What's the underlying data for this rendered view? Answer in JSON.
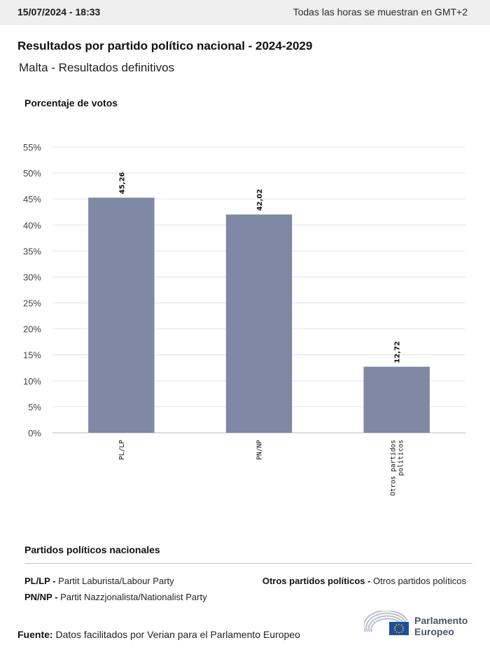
{
  "header": {
    "datetime": "15/07/2024 - 18:33",
    "timezone_note": "Todas las horas se muestran en GMT+2"
  },
  "title": "Resultados por partido político nacional - 2024-2029",
  "subtitle": "Malta - Resultados definitivos",
  "colors": {
    "bar": "#7f88a5",
    "grid": "#e4e4e4",
    "axis": "#bdbdbd"
  },
  "chart_data": {
    "type": "bar",
    "ylabel": "Porcentaje de votos",
    "ylim": [
      0,
      55
    ],
    "yticks": [
      0,
      5,
      10,
      15,
      20,
      25,
      30,
      35,
      40,
      45,
      50,
      55
    ],
    "ytick_labels": [
      "0%",
      "5%",
      "10%",
      "15%",
      "20%",
      "25%",
      "30%",
      "35%",
      "40%",
      "45%",
      "50%",
      "55%"
    ],
    "grid": true,
    "categories": [
      "PL/LP",
      "PN/NP",
      "Otros partidos políticos"
    ],
    "category_lines": [
      [
        "PL/LP"
      ],
      [
        "PN/NP"
      ],
      [
        "Otros partidos",
        "políticos"
      ]
    ],
    "values": [
      45.26,
      42.02,
      12.72
    ],
    "value_labels": [
      "45,26",
      "42,02",
      "12,72"
    ]
  },
  "legend": {
    "title": "Partidos políticos nacionales",
    "items": [
      {
        "abbr": "PL/LP",
        "name": "Partit Laburista/Labour Party"
      },
      {
        "abbr": "PN/NP",
        "name": "Partit Nazzjonalista/Nationalist Party"
      },
      {
        "abbr": "Otros partidos políticos",
        "name": "Otros partidos políticos"
      }
    ]
  },
  "source": {
    "label": "Fuente:",
    "text": "Datos facilitados por Verian para el Parlamento Europeo"
  },
  "logo": {
    "line1": "Parlamento",
    "line2": "Europeo",
    "icon": "european-parliament-logo-icon"
  }
}
